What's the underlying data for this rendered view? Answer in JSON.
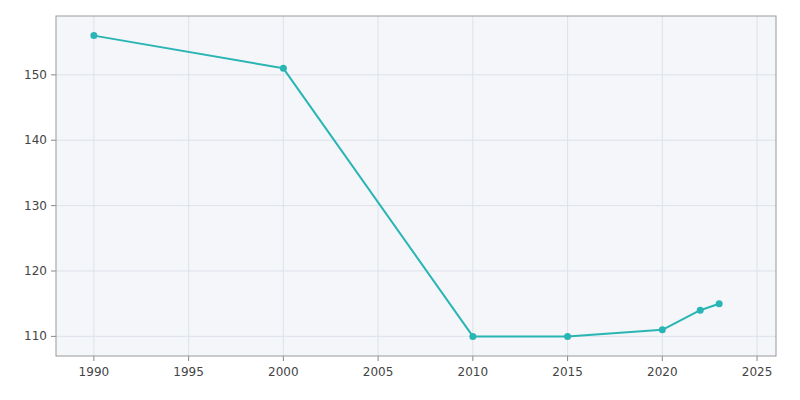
{
  "chart_data": {
    "type": "line",
    "x": [
      1990,
      2000,
      2010,
      2015,
      2020,
      2022,
      2023
    ],
    "values": [
      156,
      151,
      110,
      110,
      111,
      114,
      115
    ],
    "color": "#2ab5b5",
    "marker": "circle",
    "xlim": [
      1988,
      2026
    ],
    "ylim": [
      107,
      159
    ],
    "xticks": [
      1990,
      1995,
      2000,
      2005,
      2010,
      2015,
      2020,
      2025
    ],
    "yticks": [
      110,
      120,
      130,
      140,
      150
    ],
    "grid": true
  }
}
